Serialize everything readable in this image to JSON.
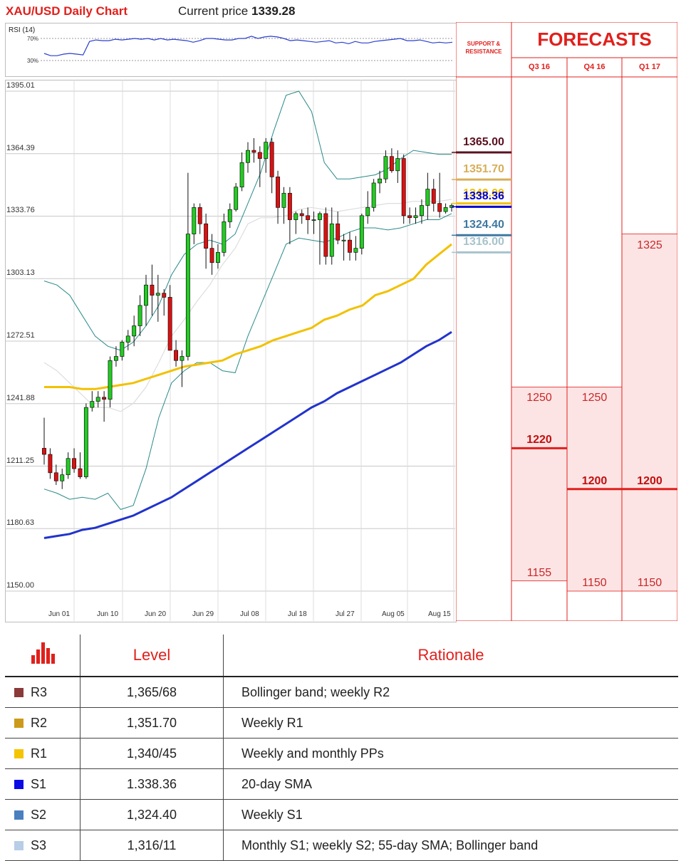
{
  "header": {
    "title": "XAU/USD Daily Chart",
    "price_label": "Current price",
    "price_value": "1339.28"
  },
  "rsi": {
    "label": "RSI (14)",
    "levels": [
      "70%",
      "30%"
    ],
    "values": [
      50,
      47,
      47,
      49,
      50,
      49,
      48,
      66,
      68,
      67,
      67,
      69,
      68,
      69,
      70,
      69,
      70,
      68,
      70,
      68,
      69,
      68,
      67,
      65,
      67,
      70,
      70,
      69,
      68,
      68,
      70,
      70,
      73,
      70,
      72,
      73,
      72,
      70,
      67,
      68,
      67,
      66,
      65,
      66,
      67,
      64,
      65,
      63,
      66,
      64,
      64,
      66,
      67,
      68,
      69,
      70,
      67,
      67,
      68,
      66,
      64,
      65,
      64,
      65
    ]
  },
  "chart_data": {
    "type": "candlestick",
    "title": "XAU/USD Daily Chart",
    "y_ticks": [
      "1395.01",
      "1364.39",
      "1333.76",
      "1303.13",
      "1272.51",
      "1241.88",
      "1211.25",
      "1180.63",
      "1150.00"
    ],
    "ylim": [
      1150.0,
      1395.01
    ],
    "x_ticks": [
      "Jun 01",
      "Jun 10",
      "Jun 20",
      "Jun 29",
      "Jul 08",
      "Jul 18",
      "Jul 27",
      "Aug 05",
      "Aug 15"
    ],
    "candles": [
      [
        1220,
        1235,
        1212,
        1217
      ],
      [
        1217,
        1220,
        1205,
        1208
      ],
      [
        1208,
        1212,
        1202,
        1204
      ],
      [
        1204,
        1210,
        1200,
        1207
      ],
      [
        1207,
        1218,
        1205,
        1215
      ],
      [
        1215,
        1220,
        1208,
        1210
      ],
      [
        1210,
        1218,
        1205,
        1206
      ],
      [
        1206,
        1242,
        1205,
        1240
      ],
      [
        1240,
        1248,
        1238,
        1243
      ],
      [
        1243,
        1248,
        1240,
        1245
      ],
      [
        1245,
        1248,
        1233,
        1244
      ],
      [
        1244,
        1265,
        1240,
        1263
      ],
      [
        1263,
        1270,
        1260,
        1265
      ],
      [
        1265,
        1273,
        1263,
        1272
      ],
      [
        1272,
        1278,
        1268,
        1275
      ],
      [
        1275,
        1285,
        1270,
        1280
      ],
      [
        1280,
        1295,
        1275,
        1290
      ],
      [
        1290,
        1305,
        1280,
        1300
      ],
      [
        1300,
        1310,
        1285,
        1295
      ],
      [
        1295,
        1305,
        1282,
        1296
      ],
      [
        1296,
        1298,
        1285,
        1294
      ],
      [
        1294,
        1300,
        1270,
        1268
      ],
      [
        1268,
        1273,
        1260,
        1263
      ],
      [
        1263,
        1268,
        1250,
        1265
      ],
      [
        1265,
        1355,
        1263,
        1325
      ],
      [
        1325,
        1340,
        1320,
        1338
      ],
      [
        1338,
        1340,
        1325,
        1330
      ],
      [
        1330,
        1335,
        1308,
        1318
      ],
      [
        1318,
        1325,
        1305,
        1311
      ],
      [
        1311,
        1320,
        1308,
        1316
      ],
      [
        1316,
        1335,
        1314,
        1331
      ],
      [
        1331,
        1340,
        1328,
        1337
      ],
      [
        1337,
        1350,
        1336,
        1348
      ],
      [
        1348,
        1365,
        1346,
        1360
      ],
      [
        1360,
        1370,
        1355,
        1366
      ],
      [
        1366,
        1372,
        1360,
        1365
      ],
      [
        1365,
        1368,
        1348,
        1362
      ],
      [
        1362,
        1372,
        1355,
        1370
      ],
      [
        1370,
        1372,
        1345,
        1353
      ],
      [
        1353,
        1356,
        1330,
        1338
      ],
      [
        1338,
        1348,
        1330,
        1345
      ],
      [
        1345,
        1348,
        1320,
        1332
      ],
      [
        1332,
        1336,
        1325,
        1335
      ],
      [
        1335,
        1337,
        1330,
        1334
      ],
      [
        1334,
        1338,
        1325,
        1332
      ],
      [
        1332,
        1336,
        1325,
        1332
      ],
      [
        1332,
        1336,
        1310,
        1335
      ],
      [
        1335,
        1338,
        1310,
        1314
      ],
      [
        1314,
        1338,
        1310,
        1330
      ],
      [
        1330,
        1336,
        1320,
        1322
      ],
      [
        1322,
        1325,
        1312,
        1322
      ],
      [
        1322,
        1326,
        1312,
        1316
      ],
      [
        1316,
        1324,
        1312,
        1318
      ],
      [
        1318,
        1335,
        1315,
        1334
      ],
      [
        1334,
        1346,
        1330,
        1338
      ],
      [
        1338,
        1352,
        1336,
        1350
      ],
      [
        1350,
        1356,
        1345,
        1352
      ],
      [
        1352,
        1366,
        1350,
        1363
      ],
      [
        1363,
        1367,
        1355,
        1356
      ],
      [
        1356,
        1366,
        1350,
        1362
      ],
      [
        1362,
        1364,
        1330,
        1334
      ],
      [
        1334,
        1338,
        1330,
        1333
      ],
      [
        1333,
        1338,
        1330,
        1334
      ],
      [
        1334,
        1342,
        1330,
        1339
      ],
      [
        1339,
        1355,
        1332,
        1347
      ],
      [
        1347,
        1352,
        1336,
        1340
      ],
      [
        1340,
        1355,
        1333,
        1336
      ],
      [
        1336,
        1340,
        1335,
        1338
      ],
      [
        1338,
        1340,
        1336,
        1339
      ]
    ],
    "overlays": [
      {
        "name": "upper-band",
        "values": [
          1302,
          1300,
          1295,
          1285,
          1275,
          1270,
          1268,
          1272,
          1280,
          1290,
          1305,
          1315,
          1320,
          1322,
          1320,
          1325,
          1340,
          1355,
          1375,
          1393,
          1395,
          1385,
          1360,
          1352,
          1352,
          1353,
          1354,
          1357,
          1362,
          1366,
          1365,
          1364,
          1364
        ]
      },
      {
        "name": "lower-band",
        "values": [
          1200,
          1198,
          1195,
          1196,
          1195,
          1198,
          1190,
          1192,
          1210,
          1235,
          1252,
          1258,
          1262,
          1262,
          1258,
          1257,
          1275,
          1290,
          1305,
          1320,
          1323,
          1322,
          1321,
          1323,
          1326,
          1328,
          1328,
          1327,
          1328,
          1330,
          1332,
          1332,
          1335
        ]
      },
      {
        "name": "mid-band",
        "values": [
          1262,
          1258,
          1252,
          1246,
          1240,
          1240,
          1238,
          1242,
          1250,
          1262,
          1275,
          1283,
          1292,
          1300,
          1310,
          1318,
          1330,
          1333,
          1333,
          1334,
          1337,
          1338,
          1337,
          1336,
          1337,
          1338,
          1339,
          1340,
          1340,
          1341,
          1341,
          1341,
          1342
        ]
      },
      {
        "name": "sma-55",
        "values": [
          1250,
          1250,
          1250,
          1249,
          1249,
          1250,
          1251,
          1252,
          1254,
          1256,
          1258,
          1260,
          1261,
          1262,
          1263,
          1266,
          1268,
          1270,
          1273,
          1275,
          1277,
          1279,
          1283,
          1285,
          1288,
          1290,
          1295,
          1297,
          1300,
          1303,
          1310,
          1315,
          1320
        ]
      },
      {
        "name": "sma-200",
        "values": [
          1176,
          1177,
          1178,
          1180,
          1181,
          1183,
          1185,
          1187,
          1190,
          1193,
          1196,
          1200,
          1204,
          1208,
          1212,
          1216,
          1220,
          1224,
          1228,
          1232,
          1236,
          1240,
          1243,
          1247,
          1250,
          1253,
          1256,
          1259,
          1262,
          1266,
          1270,
          1273,
          1277
        ]
      }
    ]
  },
  "sr": {
    "header_line1": "SUPPORT &",
    "header_line2": "RESISTANCE",
    "levels": [
      {
        "label": "1365.00",
        "color": "#5a1020",
        "value": 1365.0
      },
      {
        "label": "1351.70",
        "color": "#d8ae58",
        "value": 1351.7
      },
      {
        "label": "1340.00",
        "color": "#f2c100",
        "value": 1340.0
      },
      {
        "label": "1338.36",
        "color": "#0000d0",
        "value": 1338.36
      },
      {
        "label": "1324.40",
        "color": "#3f78a0",
        "value": 1324.4
      },
      {
        "label": "1316.00",
        "color": "#a7c3cb",
        "value": 1316.0
      }
    ]
  },
  "forecasts": {
    "title": "FORECASTS",
    "columns": [
      {
        "label": "Q3 16",
        "high": "1250",
        "mid": "1220",
        "low": "1155"
      },
      {
        "label": "Q4 16",
        "high": "1250",
        "mid": "1200",
        "low": "1150"
      },
      {
        "label": "Q1 17",
        "high": "1325",
        "mid": "1200",
        "low": "1150"
      }
    ]
  },
  "levels_table": {
    "col_level": "Level",
    "col_rationale": "Rationale",
    "rows": [
      {
        "code": "R3",
        "level": "1,365/68",
        "rationale": "Bollinger band; weekly R2",
        "color": "#8b3a3a"
      },
      {
        "code": "R2",
        "level": "1,351.70",
        "rationale": "Weekly R1",
        "color": "#cc9a1a"
      },
      {
        "code": "R1",
        "level": "1,340/45",
        "rationale": "Weekly and monthly PPs",
        "color": "#f5c400"
      },
      {
        "code": "S1",
        "level": "1.338.36",
        "rationale": "20-day SMA",
        "color": "#0a0ae6"
      },
      {
        "code": "S2",
        "level": "1,324.40",
        "rationale": "Weekly S1",
        "color": "#4a7fc0"
      },
      {
        "code": "S3",
        "level": "1,316/11",
        "rationale": "Monthly S1; weekly S2; 55-day SMA; Bollinger band",
        "color": "#b8cde6"
      }
    ]
  },
  "colors": {
    "accent": "#e0201c",
    "bull": "#22cc22",
    "bear": "#dd1111",
    "forecast_fill": "#fde4e4"
  }
}
